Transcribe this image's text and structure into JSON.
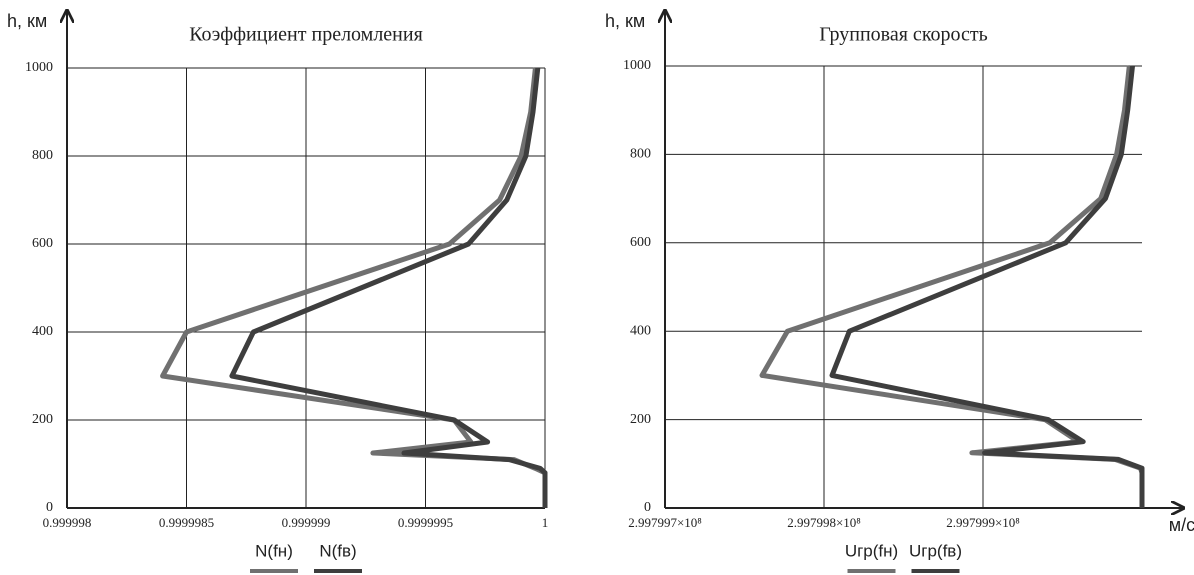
{
  "chart_data": [
    {
      "type": "line",
      "title": "Коэффициент преломления",
      "ylabel": "h, км",
      "xlim": [
        0.999998,
        1
      ],
      "xticks": [
        0.999998,
        0.9999985,
        0.999999,
        0.9999995,
        1
      ],
      "ylim": [
        0,
        1000
      ],
      "yticks": [
        0,
        200,
        400,
        600,
        800,
        1000
      ],
      "grid": true,
      "y": [
        1000,
        900,
        800,
        700,
        600,
        400,
        300,
        200,
        150,
        125,
        110,
        90,
        80,
        0
      ],
      "series": [
        {
          "name": "N(fн)",
          "color": "#707070",
          "values": [
            0.99999996,
            0.99999994,
            0.9999999,
            0.99999981,
            0.9999996,
            0.9999985,
            0.9999984,
            0.99999962,
            0.99999969,
            0.99999928,
            0.99999987,
            0.99999996,
            1,
            1
          ]
        },
        {
          "name": "N(fв)",
          "color": "#3e3e3e",
          "values": [
            0.99999997,
            0.99999995,
            0.99999992,
            0.99999984,
            0.99999968,
            0.99999878,
            0.99999869,
            0.99999962,
            0.99999976,
            0.99999941,
            0.99999985,
            0.99999998,
            1,
            1
          ]
        }
      ]
    },
    {
      "type": "line",
      "title": "Групповая скорость",
      "ylabel": "h, км",
      "xlabel": "м/с",
      "xlim": [
        299799700,
        299800000
      ],
      "xticks": [
        {
          "value": 299799700,
          "label": "2.997997×10⁸"
        },
        {
          "value": 299799800,
          "label": "2.997998×10⁸"
        },
        {
          "value": 299799900,
          "label": "2.997999×10⁸"
        }
      ],
      "ylim": [
        0,
        1000
      ],
      "yticks": [
        0,
        200,
        400,
        600,
        800,
        1000
      ],
      "grid": true,
      "y": [
        1000,
        900,
        800,
        700,
        600,
        400,
        300,
        200,
        150,
        125,
        110,
        90,
        80,
        0
      ],
      "series": [
        {
          "name": "Uгр(fн)",
          "color": "#707070",
          "values": [
            299799992,
            299799989,
            299799984,
            299799974,
            299799942,
            299799777,
            299799761,
            299799939,
            299799960,
            299799893,
            299799983,
            299799999,
            299800000,
            299800000
          ]
        },
        {
          "name": "Uгр(fв)",
          "color": "#3e3e3e",
          "values": [
            299799994,
            299799991,
            299799987,
            299799977,
            299799952,
            299799816,
            299799805,
            299799941,
            299799963,
            299799901,
            299799985,
            299800000,
            299800000,
            299800000
          ]
        }
      ]
    }
  ]
}
